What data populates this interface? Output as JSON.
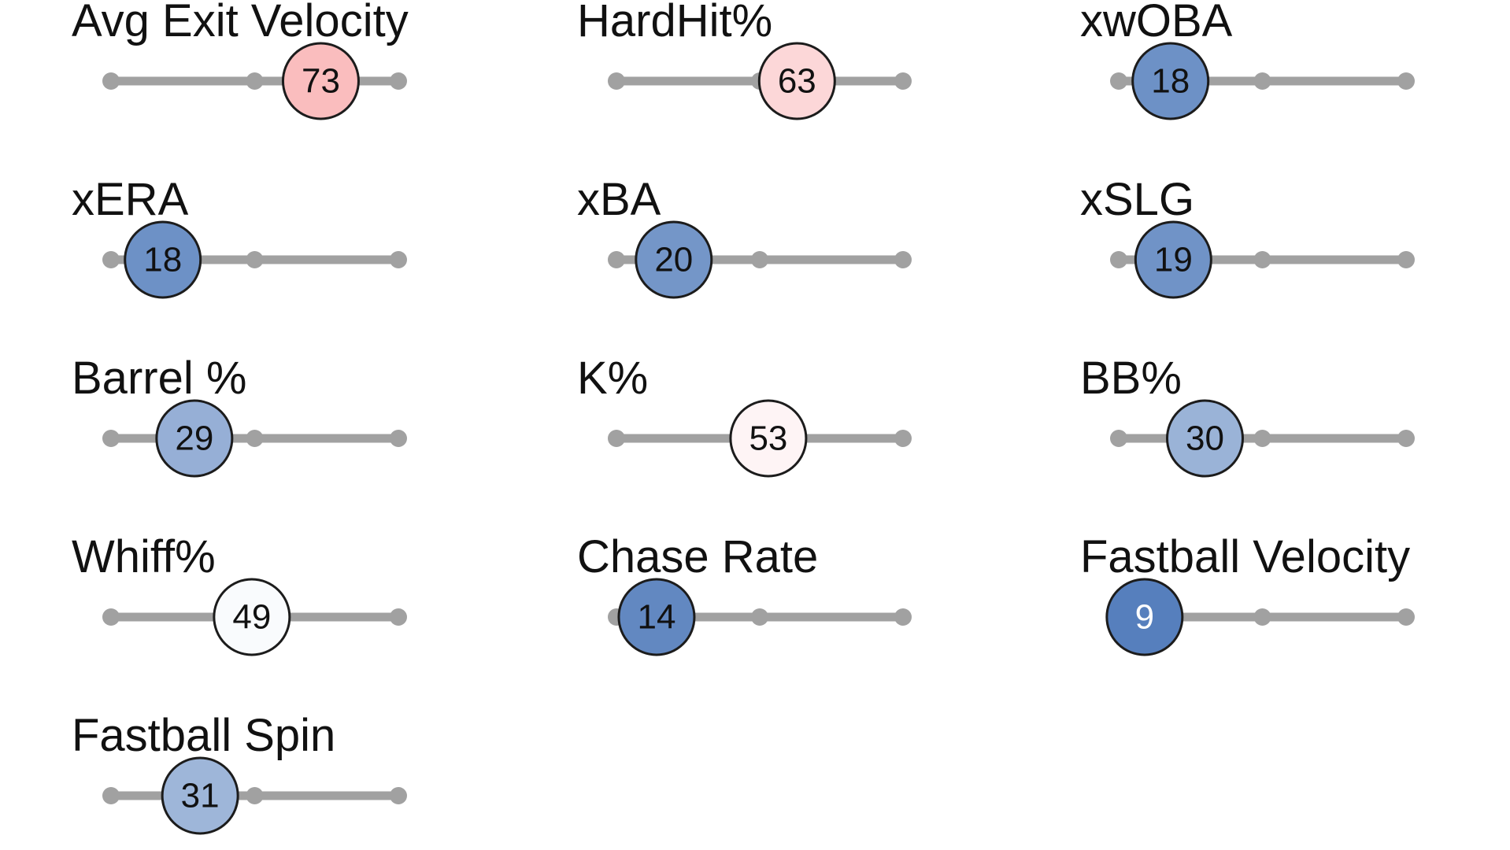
{
  "chart_data": {
    "type": "scatter",
    "title": "",
    "scale": {
      "min": 0,
      "max": 100,
      "ticks": [
        0,
        50,
        100
      ]
    },
    "grid": false,
    "legend": "none",
    "colors": {
      "track": "#a1a1a1",
      "stroke": "#1c1c1c",
      "low": "#4a76b8",
      "neutral": "#ffffff",
      "high": "#f57a7c"
    },
    "metrics": [
      {
        "label": "Avg Exit Velocity",
        "percentile": 73
      },
      {
        "label": "HardHit%",
        "percentile": 63
      },
      {
        "label": "xwOBA",
        "percentile": 18
      },
      {
        "label": "xERA",
        "percentile": 18
      },
      {
        "label": "xBA",
        "percentile": 20
      },
      {
        "label": "xSLG",
        "percentile": 19
      },
      {
        "label": "Barrel %",
        "percentile": 29
      },
      {
        "label": "K%",
        "percentile": 53
      },
      {
        "label": "BB%",
        "percentile": 30
      },
      {
        "label": "Whiff%",
        "percentile": 49
      },
      {
        "label": "Chase Rate",
        "percentile": 14
      },
      {
        "label": "Fastball Velocity",
        "percentile": 9
      },
      {
        "label": "Fastball Spin",
        "percentile": 31
      }
    ]
  }
}
